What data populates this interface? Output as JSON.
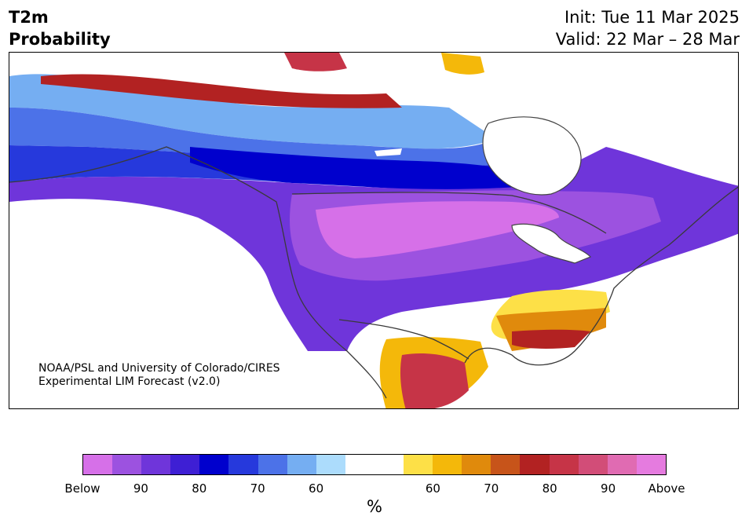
{
  "header": {
    "variable": "T2m",
    "product": "Probability",
    "init": "Init: Tue 11 Mar 2025",
    "valid": "Valid: 22 Mar – 28 Mar"
  },
  "credit": {
    "line1": "NOAA/PSL and University of Colorado/CIRES",
    "line2": "Experimental LIM Forecast (v2.0)"
  },
  "colorbar": {
    "colors": [
      "#d670e8",
      "#9c52e0",
      "#6f35da",
      "#3e1fd4",
      "#0000cd",
      "#2639dc",
      "#4c72e8",
      "#75aef2",
      "#acdcfc",
      "#ffffff",
      "#ffffff",
      "#fde047",
      "#f4b80a",
      "#e08a0c",
      "#c7541a",
      "#b22222",
      "#c63447",
      "#d24d78",
      "#e06bb2",
      "#e57bdf"
    ],
    "tick_labels": [
      "Below",
      "90",
      "80",
      "70",
      "60",
      "60",
      "70",
      "80",
      "90",
      "Above"
    ],
    "unit": "%"
  },
  "map_colors": {
    "below_90": "#d670e8",
    "below_85": "#9c52e0",
    "below_80": "#6f35da",
    "below_75": "#3e1fd4",
    "below_70": "#0000cd",
    "below_65": "#2639dc",
    "below_60": "#4c72e8",
    "below_55": "#75aef2",
    "below_50": "#acdcfc",
    "above_55": "#fde047",
    "above_60": "#f4b80a",
    "above_65": "#e08a0c",
    "above_70": "#c7541a",
    "above_75": "#b22222",
    "above_80": "#c63447",
    "above_85": "#d24d78",
    "above_90": "#e06bb2"
  }
}
